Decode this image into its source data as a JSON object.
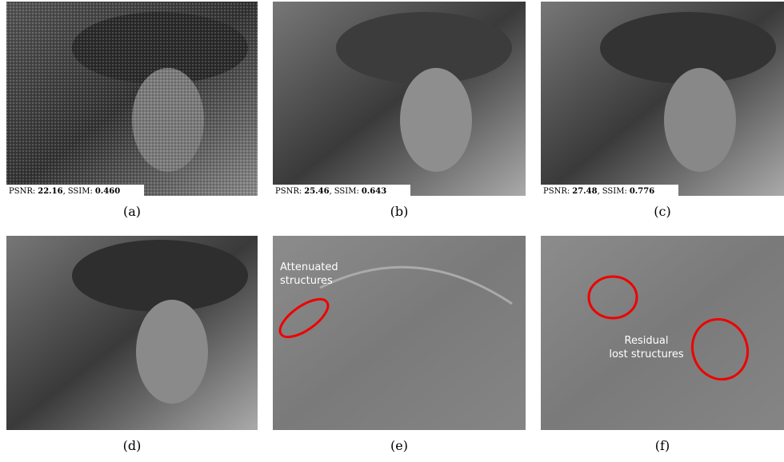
{
  "panels": [
    {
      "label": "(a)",
      "metrics": {
        "psnr_label": "PSNR:",
        "psnr": "22.16",
        "separator": ",",
        "ssim_label": "SSIM:",
        "ssim": "0.460"
      }
    },
    {
      "label": "(b)",
      "metrics": {
        "psnr_label": "PSNR:",
        "psnr": "25.46",
        "separator": ",",
        "ssim_label": "SSIM:",
        "ssim": "0.643"
      }
    },
    {
      "label": "(c)",
      "metrics": {
        "psnr_label": "PSNR:",
        "psnr": "27.48",
        "separator": ",",
        "ssim_label": "SSIM:",
        "ssim": "0.776"
      }
    },
    {
      "label": "(d)"
    },
    {
      "label": "(e)",
      "annotation": [
        "Attenuated",
        "structures"
      ]
    },
    {
      "label": "(f)",
      "annotation": [
        "Residual",
        "lost structures"
      ]
    }
  ]
}
